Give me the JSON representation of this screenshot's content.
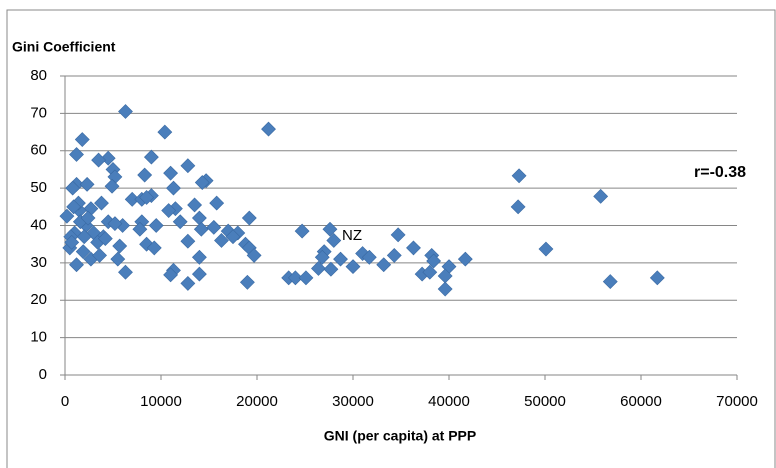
{
  "chart_data": {
    "type": "scatter",
    "y_label": "Gini Coefficient",
    "x_label": "GNI (per capita) at PPP",
    "annotations": [
      "NZ",
      "r=-0.38"
    ],
    "color": "#4a7ebb",
    "grid": true,
    "xlim": [
      0,
      70000
    ],
    "xticks": [
      0,
      10000,
      20000,
      30000,
      40000,
      50000,
      60000,
      70000
    ],
    "ylim": [
      0,
      80
    ],
    "yticks": [
      0,
      10,
      20,
      30,
      40,
      50,
      60,
      70,
      80
    ],
    "x": [
      6300,
      10400,
      21200,
      1800,
      1200,
      9000,
      4500,
      3500,
      12800,
      5000,
      5200,
      47300,
      8300,
      11000,
      14700,
      14300,
      1200,
      2300,
      4900,
      11300,
      800,
      55800,
      7000,
      8000,
      15800,
      47200,
      3800,
      13500,
      11500,
      10800,
      2700,
      200,
      1500,
      19200,
      14000,
      9000,
      8500,
      6000,
      8000,
      12000,
      4500,
      5200,
      2200,
      7800,
      14200,
      15500,
      9500,
      24700,
      17000,
      18000,
      17500,
      27600,
      28000,
      34700,
      3000,
      1000,
      2000,
      4000,
      16300,
      12800,
      18800,
      8500,
      19200,
      9300,
      5700,
      500,
      36300,
      50100,
      27000,
      31000,
      34300,
      38200,
      19700,
      14000,
      26800,
      28700,
      31700,
      41700,
      38400,
      5500,
      2700,
      30000,
      33200,
      40000,
      26400,
      27700,
      11300,
      6300,
      37200,
      38000,
      14000,
      11000,
      23300,
      24000,
      25100,
      39600,
      61700,
      56800,
      19000,
      12800,
      39600,
      1200,
      600,
      1400,
      900,
      1600,
      2400,
      3400,
      4200,
      700,
      3600,
      1900
    ],
    "y": [
      70.5,
      65,
      65.8,
      63,
      59,
      58.3,
      58,
      57.5,
      56,
      55,
      53,
      53.3,
      53.5,
      54,
      52,
      51.5,
      51,
      51,
      50.5,
      50,
      50,
      47.8,
      47,
      47,
      46,
      45,
      46,
      45.5,
      44.5,
      44,
      44.5,
      42.5,
      44,
      42,
      42,
      48,
      47.5,
      40,
      41,
      41,
      41,
      40.5,
      40,
      39,
      39,
      39.5,
      40,
      38.5,
      38.5,
      38,
      37,
      39,
      36,
      37.5,
      38,
      38,
      37,
      37,
      36,
      35.8,
      35,
      35,
      34,
      34,
      34.5,
      34,
      34,
      33.7,
      33,
      32.5,
      32,
      32,
      32,
      31.5,
      31.5,
      31,
      31.5,
      31,
      30.5,
      31,
      31,
      29,
      29.5,
      29,
      28.5,
      28.3,
      28,
      27.5,
      27,
      27.5,
      27,
      26.8,
      26,
      26,
      26,
      26.5,
      26,
      25,
      24.8,
      24.5,
      23,
      29.5,
      37,
      46,
      45,
      41,
      42,
      35.5,
      36.5,
      35.5,
      32,
      33
    ]
  }
}
